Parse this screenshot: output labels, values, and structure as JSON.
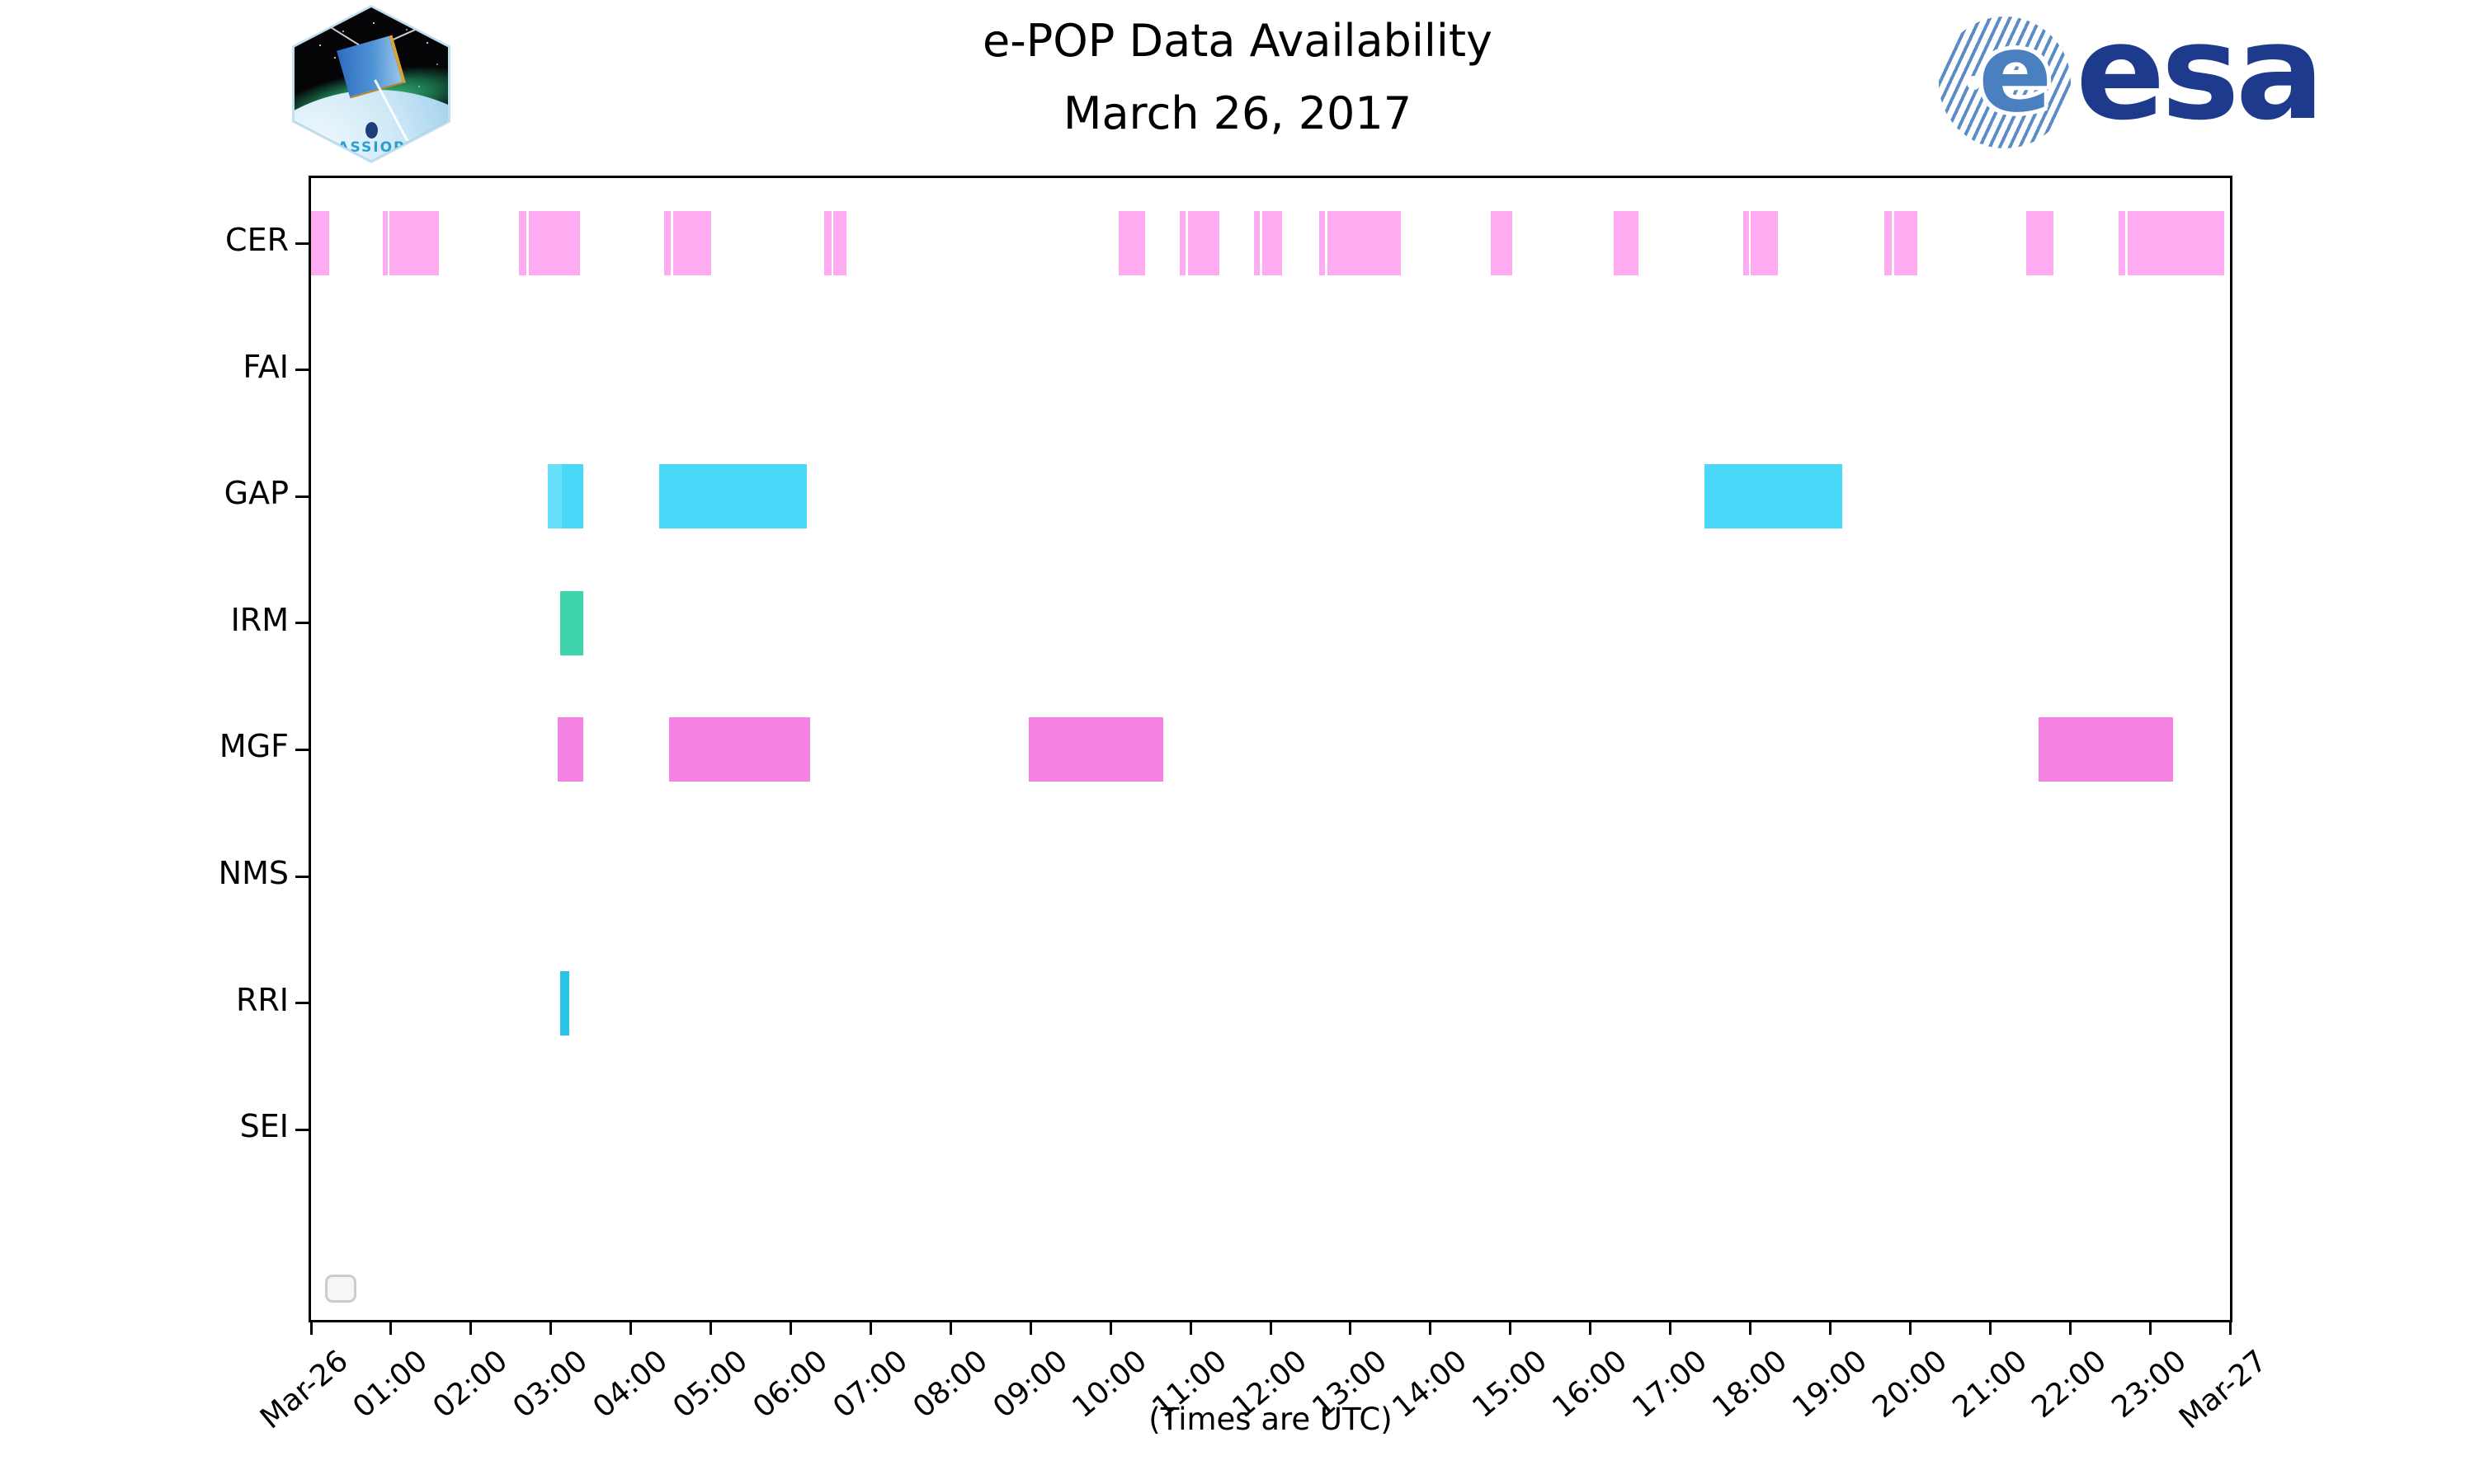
{
  "header": {
    "mission_patch_label": "CASSIOPE",
    "esa_text": "esa"
  },
  "chart_data": {
    "type": "bar",
    "subtype": "broken-horizontal-bar availability timeline",
    "title": "e-POP Data Availability",
    "subtitle": "March 26, 2017",
    "xlabel": "(Times are UTC)",
    "grid": false,
    "x_axis": {
      "start_label": "Mar-26",
      "end_label": "Mar-27",
      "span_hours": 24,
      "tick_interval_hours": 1,
      "tick_label_rotation_deg": 40,
      "tick_labels": [
        "Mar-26",
        "01:00",
        "02:00",
        "03:00",
        "04:00",
        "05:00",
        "06:00",
        "07:00",
        "08:00",
        "09:00",
        "10:00",
        "11:00",
        "12:00",
        "13:00",
        "14:00",
        "15:00",
        "16:00",
        "17:00",
        "18:00",
        "19:00",
        "20:00",
        "21:00",
        "22:00",
        "23:00",
        "Mar-27"
      ]
    },
    "legend": {
      "present": true,
      "entries": []
    },
    "series": [
      {
        "name": "CER",
        "color": "#FFABF2",
        "intervals": [
          [
            0.0,
            0.23
          ],
          [
            0.9,
            0.96
          ],
          [
            0.98,
            1.6
          ],
          [
            2.6,
            2.69
          ],
          [
            2.72,
            3.36
          ],
          [
            4.42,
            4.5
          ],
          [
            4.53,
            5.0
          ],
          [
            6.42,
            6.51
          ],
          [
            6.53,
            6.7
          ],
          [
            10.1,
            10.43
          ],
          [
            10.86,
            10.94
          ],
          [
            10.97,
            11.36
          ],
          [
            11.79,
            11.87
          ],
          [
            11.9,
            12.14
          ],
          [
            12.61,
            12.68
          ],
          [
            12.71,
            13.63
          ],
          [
            14.75,
            15.02
          ],
          [
            16.29,
            16.6
          ],
          [
            17.91,
            17.98
          ],
          [
            18.01,
            18.35
          ],
          [
            19.68,
            19.77
          ],
          [
            19.8,
            20.09
          ],
          [
            21.45,
            21.79
          ],
          [
            22.61,
            22.69
          ],
          [
            22.72,
            23.93
          ]
        ]
      },
      {
        "name": "FAI",
        "color": "#999999",
        "intervals": []
      },
      {
        "name": "GAP",
        "color": "#4AD8F8",
        "intervals": [
          [
            2.96,
            3.14
          ],
          [
            3.14,
            3.41
          ],
          [
            4.35,
            6.2
          ],
          [
            17.43,
            19.15
          ]
        ],
        "interval_colors": [
          "#66E0FA",
          null,
          null,
          null
        ]
      },
      {
        "name": "IRM",
        "color": "#3ED5AC",
        "intervals": [
          [
            3.12,
            3.41
          ]
        ]
      },
      {
        "name": "MGF",
        "color": "#F382E3",
        "intervals": [
          [
            3.09,
            3.4
          ],
          [
            4.48,
            6.24
          ],
          [
            8.98,
            10.66
          ],
          [
            21.61,
            23.29
          ]
        ]
      },
      {
        "name": "NMS",
        "color": "#999999",
        "intervals": []
      },
      {
        "name": "RRI",
        "color": "#2BC2E8",
        "intervals": [
          [
            3.12,
            3.23
          ]
        ]
      },
      {
        "name": "SEI",
        "color": "#999999",
        "intervals": []
      }
    ]
  }
}
